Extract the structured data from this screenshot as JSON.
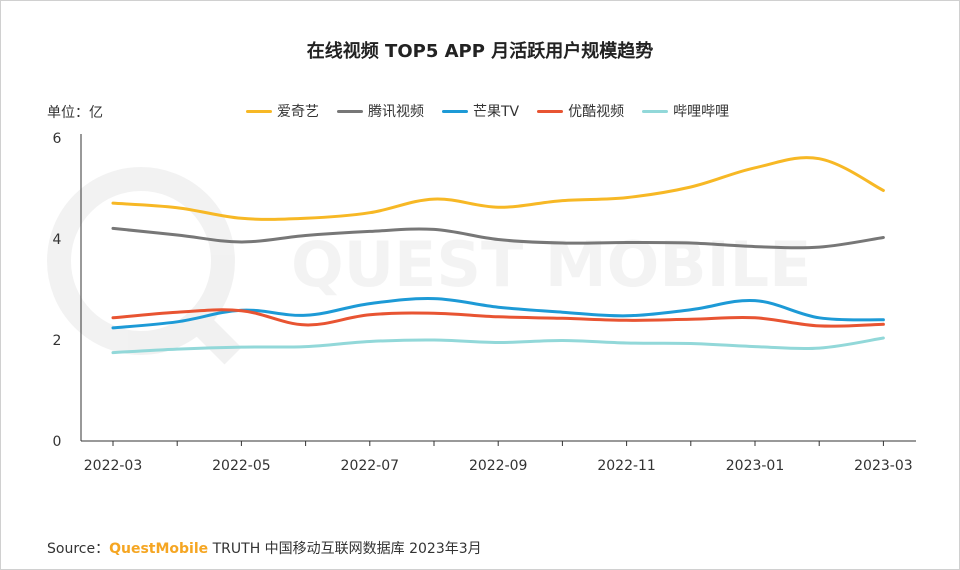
{
  "chart_data": {
    "type": "line",
    "title": "在线视频 TOP5 APP 月活跃用户规模趋势",
    "unit_label": "单位：亿",
    "ylim": [
      0,
      6
    ],
    "yticks": [
      0,
      2,
      4,
      6
    ],
    "x": [
      "2022-03",
      "2022-04",
      "2022-05",
      "2022-06",
      "2022-07",
      "2022-08",
      "2022-09",
      "2022-10",
      "2022-11",
      "2022-12",
      "2023-01",
      "2023-02",
      "2023-03"
    ],
    "xtick_labels": [
      "2022-03",
      "2022-05",
      "2022-07",
      "2022-09",
      "2022-11",
      "2023-01",
      "2023-03"
    ],
    "series": [
      {
        "name": "爱奇艺",
        "color": "#f7b825",
        "values": [
          4.71,
          4.62,
          4.41,
          4.41,
          4.52,
          4.79,
          4.63,
          4.76,
          4.82,
          5.03,
          5.41,
          5.59,
          4.96
        ]
      },
      {
        "name": "腾讯视频",
        "color": "#777777",
        "values": [
          4.21,
          4.08,
          3.94,
          4.07,
          4.15,
          4.19,
          3.99,
          3.92,
          3.93,
          3.92,
          3.85,
          3.84,
          4.03
        ]
      },
      {
        "name": "芒果TV",
        "color": "#1d9ad6",
        "values": [
          2.24,
          2.36,
          2.59,
          2.49,
          2.72,
          2.82,
          2.65,
          2.55,
          2.48,
          2.6,
          2.78,
          2.44,
          2.4
        ]
      },
      {
        "name": "优酷视频",
        "color": "#e85432",
        "values": [
          2.44,
          2.55,
          2.58,
          2.3,
          2.5,
          2.53,
          2.46,
          2.43,
          2.39,
          2.41,
          2.44,
          2.28,
          2.31
        ]
      },
      {
        "name": "哔哩哔哩",
        "color": "#92d8d9",
        "values": [
          1.75,
          1.82,
          1.86,
          1.87,
          1.97,
          2.0,
          1.95,
          1.99,
          1.94,
          1.93,
          1.87,
          1.84,
          2.04
        ]
      }
    ],
    "grid": false,
    "legend_position": "top"
  },
  "footer": {
    "source_label": "Source：",
    "brand": "QuestMobile",
    "rest": "TRUTH 中国移动互联网数据库 2023年3月"
  },
  "watermark": "QUEST MOBILE"
}
